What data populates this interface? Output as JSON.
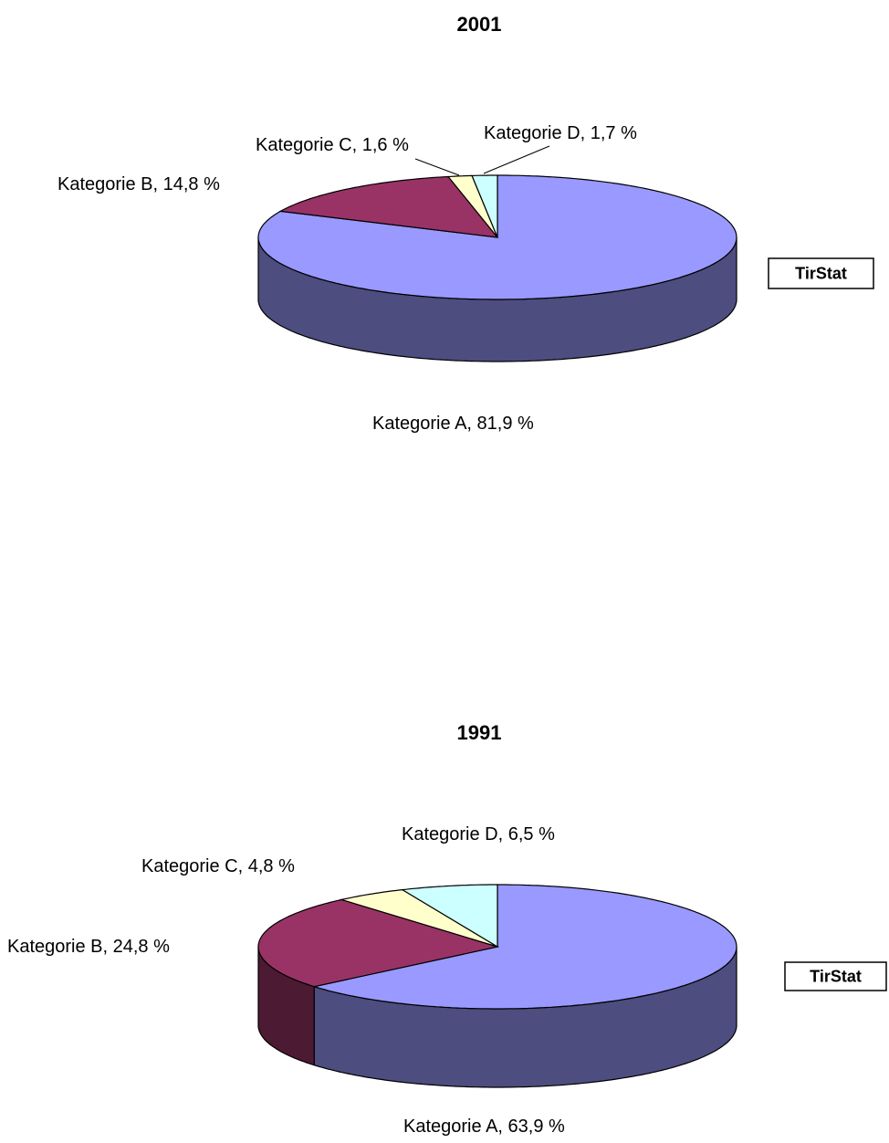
{
  "chart_data": [
    {
      "type": "pie3d",
      "title": "2001",
      "values": [
        81.9,
        14.8,
        1.6,
        1.7
      ],
      "value_labels": [
        "Kategorie A,  81,9 %",
        "Kategorie B, 14,8 %",
        "Kategorie C, 1,6 %",
        "Kategorie D, 1,7 %"
      ],
      "colors": [
        "#9999ff",
        "#993366",
        "#ffffcc",
        "#ccffff"
      ],
      "annotation": "TirStat"
    },
    {
      "type": "pie3d",
      "title": "1991",
      "values": [
        63.9,
        24.8,
        4.8,
        6.5
      ],
      "value_labels": [
        "Kategorie A,  63,9 %",
        "Kategorie B, 24,8 %",
        "Kategorie C, 4,8 %",
        "Kategorie D,  6,5 %"
      ],
      "colors": [
        "#9999ff",
        "#993366",
        "#ffffcc",
        "#ccffff"
      ],
      "annotation": "TirStat"
    }
  ]
}
